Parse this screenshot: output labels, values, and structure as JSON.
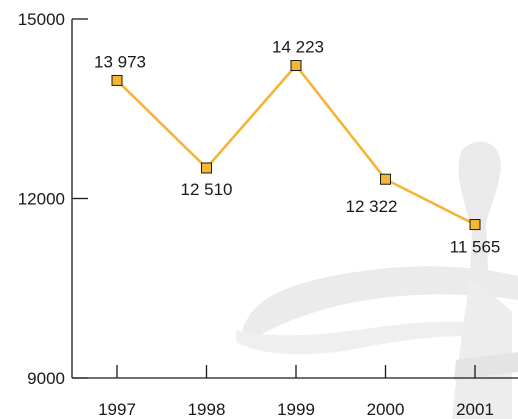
{
  "chart_data": {
    "type": "line",
    "categories": [
      "1997",
      "1998",
      "1999",
      "2000",
      "2001"
    ],
    "series": [
      {
        "values": [
          13973,
          12510,
          14223,
          12322,
          11565
        ],
        "labels": [
          "13 973",
          "12 510",
          "14 223",
          "12 322",
          "11 565"
        ]
      }
    ],
    "y_ticks": [
      {
        "value": 9000,
        "label": "9000"
      },
      {
        "value": 12000,
        "label": "12000"
      },
      {
        "value": 15000,
        "label": "15000"
      }
    ],
    "ylim": [
      9000,
      15000
    ],
    "grid": false,
    "legend": "none",
    "colors": {
      "line": "#f5b433",
      "marker_fill": "#f3b733",
      "marker_stroke": "#1a1a1a",
      "axis": "#1a1a1a",
      "watermark": "#e6e6e6"
    }
  }
}
